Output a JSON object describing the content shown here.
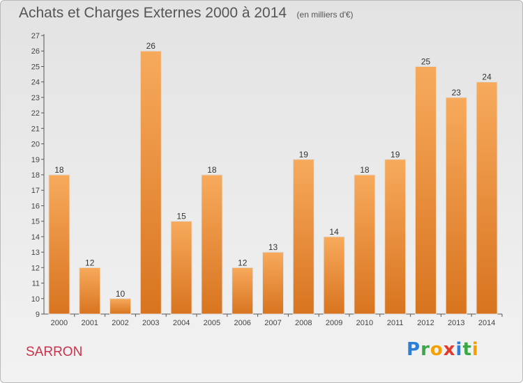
{
  "chart_data": {
    "type": "bar",
    "title": "Achats et Charges Externes 2000 à 2014",
    "subtitle": "(en milliers d'€)",
    "categories": [
      "2000",
      "2001",
      "2002",
      "2003",
      "2004",
      "2005",
      "2006",
      "2007",
      "2008",
      "2009",
      "2010",
      "2011",
      "2012",
      "2013",
      "2014"
    ],
    "values": [
      18,
      12,
      10,
      26,
      15,
      18,
      12,
      13,
      19,
      14,
      18,
      19,
      25,
      23,
      24
    ],
    "ylim": [
      9,
      27
    ],
    "yticks": [
      9,
      10,
      11,
      12,
      13,
      14,
      15,
      16,
      17,
      18,
      19,
      20,
      21,
      22,
      23,
      24,
      25,
      26,
      27
    ],
    "grid": false,
    "bar_color": "#f0913a"
  },
  "place_name": "SARRON",
  "logo_text": "Proxiti"
}
